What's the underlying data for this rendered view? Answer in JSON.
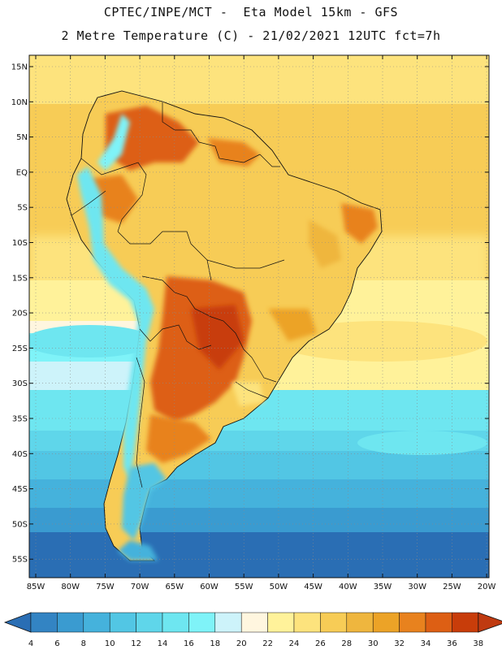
{
  "header": {
    "line1": "CPTEC/INPE/MCT -  Eta Model 15km - GFS",
    "line2": "2 Metre Temperature (C) - 21/02/2021 12UTC fct=7h"
  },
  "axes": {
    "lat_labels": [
      "15N",
      "10N",
      "5N",
      "EQ",
      "5S",
      "10S",
      "15S",
      "20S",
      "25S",
      "30S",
      "35S",
      "40S",
      "45S",
      "50S",
      "55S"
    ],
    "lon_labels": [
      "85W",
      "80W",
      "75W",
      "70W",
      "65W",
      "60W",
      "55W",
      "50W",
      "45W",
      "40W",
      "35W",
      "30W",
      "25W",
      "20W"
    ]
  },
  "legend": {
    "values": [
      "4",
      "6",
      "8",
      "10",
      "12",
      "14",
      "16",
      "18",
      "20",
      "22",
      "24",
      "26",
      "28",
      "30",
      "32",
      "34",
      "36",
      "38"
    ],
    "colors": [
      "#2a6eb4",
      "#3384c3",
      "#3a9bd0",
      "#45b2dc",
      "#52c6e4",
      "#5fd6ea",
      "#6ee6f0",
      "#7ff3f8",
      "#cdf3fa",
      "#fff6df",
      "#fff29a",
      "#fde37d",
      "#f7cc56",
      "#efb63e",
      "#eca327",
      "#e8821e",
      "#dd5f14",
      "#c83d0a",
      "#bf3a10"
    ]
  }
}
